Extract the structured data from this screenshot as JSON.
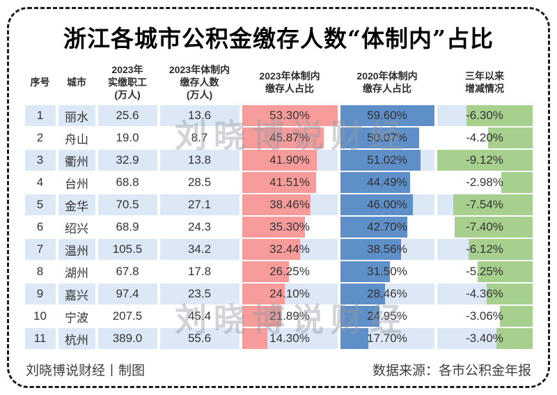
{
  "title": "浙江各城市公积金缴存人数“体制内”占比",
  "watermark": "刘晓博说财经",
  "footer": {
    "left": "刘晓博说财经丨制图",
    "right": "数据来源：各市公积金年报"
  },
  "colors": {
    "bar_2023": "#f89c9b",
    "bar_2020": "#5e8fc9",
    "bar_change": "#a7cf8d",
    "row_alt": "#dce8f5",
    "row_plain": "#ffffff",
    "border": "#1b1b1b"
  },
  "table": {
    "headers": [
      "序号",
      "城市",
      "2023年\n实缴职工\n(万人)",
      "2023年体制内\n缴存人数\n(万人)",
      "2023年体制内\n缴存人占比",
      "2020年体制内\n缴存人占比",
      "三年以来\n增减情况"
    ],
    "rows": [
      {
        "no": "1",
        "city": "丽水",
        "paid": "25.6",
        "inside": "13.6",
        "r2023": "53.30%",
        "r2020": "59.60%",
        "change": "-6.30%"
      },
      {
        "no": "2",
        "city": "舟山",
        "paid": "19.0",
        "inside": "8.7",
        "r2023": "45.87%",
        "r2020": "50.07%",
        "change": "-4.20%"
      },
      {
        "no": "3",
        "city": "衢州",
        "paid": "32.9",
        "inside": "13.8",
        "r2023": "41.90%",
        "r2020": "51.02%",
        "change": "-9.12%"
      },
      {
        "no": "4",
        "city": "台州",
        "paid": "68.8",
        "inside": "28.5",
        "r2023": "41.51%",
        "r2020": "44.49%",
        "change": "-2.98%"
      },
      {
        "no": "5",
        "city": "金华",
        "paid": "70.5",
        "inside": "27.1",
        "r2023": "38.46%",
        "r2020": "46.00%",
        "change": "-7.54%"
      },
      {
        "no": "6",
        "city": "绍兴",
        "paid": "68.9",
        "inside": "24.3",
        "r2023": "35.30%",
        "r2020": "42.70%",
        "change": "-7.40%"
      },
      {
        "no": "7",
        "city": "温州",
        "paid": "105.5",
        "inside": "34.2",
        "r2023": "32.44%",
        "r2020": "38.56%",
        "change": "-6.12%"
      },
      {
        "no": "8",
        "city": "湖州",
        "paid": "67.8",
        "inside": "17.8",
        "r2023": "26.25%",
        "r2020": "31.50%",
        "change": "-5.25%"
      },
      {
        "no": "9",
        "city": "嘉兴",
        "paid": "97.4",
        "inside": "23.5",
        "r2023": "24.10%",
        "r2020": "28.46%",
        "change": "-4.36%"
      },
      {
        "no": "10",
        "city": "宁波",
        "paid": "207.5",
        "inside": "45.4",
        "r2023": "21.89%",
        "r2020": "24.95%",
        "change": "-3.06%"
      },
      {
        "no": "11",
        "city": "杭州",
        "paid": "389.0",
        "inside": "55.6",
        "r2023": "14.30%",
        "r2020": "17.70%",
        "change": "-3.40%"
      }
    ]
  },
  "chart_data": {
    "type": "table",
    "title": "浙江各城市公积金缴存人数“体制内”占比",
    "columns": [
      "序号",
      "城市",
      "2023年实缴职工(万人)",
      "2023年体制内缴存人数(万人)",
      "2023年体制内缴存人占比",
      "2020年体制内缴存人占比",
      "三年以来增减情况"
    ],
    "categories": [
      "丽水",
      "舟山",
      "衢州",
      "台州",
      "金华",
      "绍兴",
      "温州",
      "湖州",
      "嘉兴",
      "宁波",
      "杭州"
    ],
    "series": [
      {
        "name": "2023年实缴职工(万人)",
        "values": [
          25.6,
          19.0,
          32.9,
          68.8,
          70.5,
          68.9,
          105.5,
          67.8,
          97.4,
          207.5,
          389.0
        ]
      },
      {
        "name": "2023年体制内缴存人数(万人)",
        "values": [
          13.6,
          8.7,
          13.8,
          28.5,
          27.1,
          24.3,
          34.2,
          17.8,
          23.5,
          45.4,
          55.6
        ]
      },
      {
        "name": "2023年体制内缴存人占比(%)",
        "values": [
          53.3,
          45.87,
          41.9,
          41.51,
          38.46,
          35.3,
          32.44,
          26.25,
          24.1,
          21.89,
          14.3
        ],
        "bar_color": "#f89c9b",
        "bar_align": "left"
      },
      {
        "name": "2020年体制内缴存人占比(%)",
        "values": [
          59.6,
          50.07,
          51.02,
          44.49,
          46.0,
          42.7,
          38.56,
          31.5,
          28.46,
          24.95,
          17.7
        ],
        "bar_color": "#5e8fc9",
        "bar_align": "left"
      },
      {
        "name": "三年以来增减情况(%)",
        "values": [
          -6.3,
          -4.2,
          -9.12,
          -2.98,
          -7.54,
          -7.4,
          -6.12,
          -5.25,
          -4.36,
          -3.06,
          -3.4
        ],
        "bar_color": "#a7cf8d",
        "bar_align": "right"
      }
    ],
    "notes": "数据条宽度按各列最大绝对值等比缩放；增减列数据条右对齐"
  }
}
